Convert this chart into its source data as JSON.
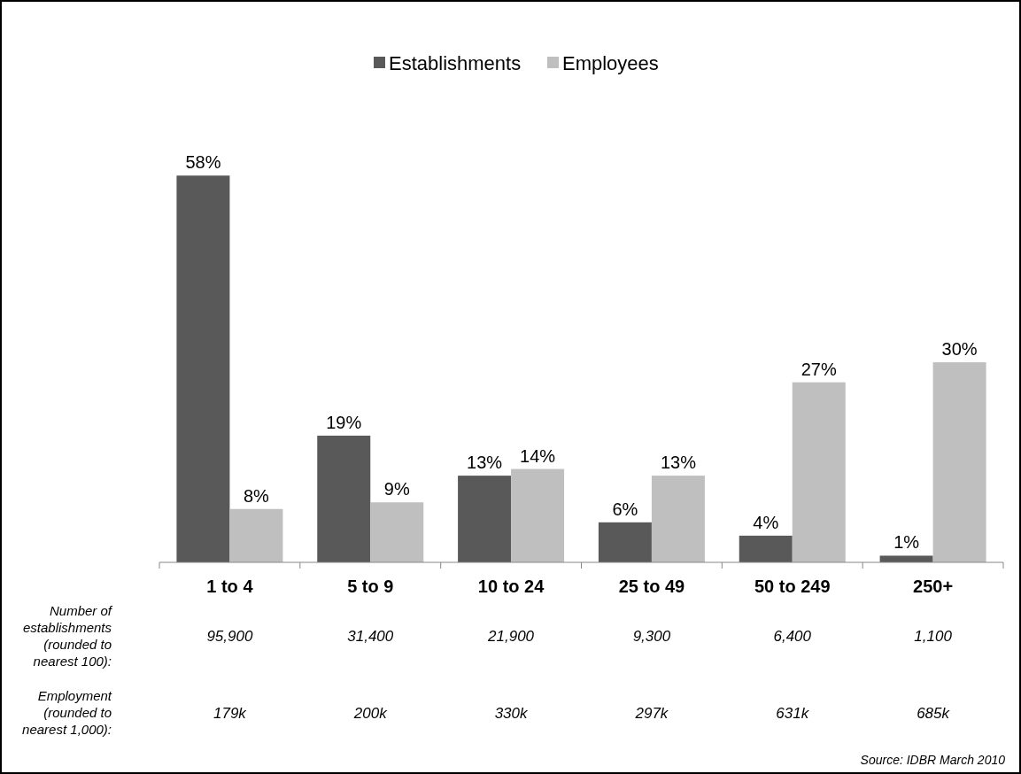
{
  "chart_data": {
    "type": "bar",
    "categories": [
      "1 to 4",
      "5 to 9",
      "10 to 24",
      "25 to 49",
      "50 to 249",
      "250+"
    ],
    "series": [
      {
        "name": "Establishments",
        "color": "#595959",
        "values": [
          58,
          19,
          13,
          6,
          4,
          1
        ],
        "value_labels": [
          "58%",
          "19%",
          "13%",
          "6%",
          "4%",
          "1%"
        ]
      },
      {
        "name": "Employees",
        "color": "#bfbfbf",
        "values": [
          8,
          9,
          14,
          13,
          27,
          30
        ],
        "value_labels": [
          "8%",
          "9%",
          "14%",
          "13%",
          "27%",
          "30%"
        ]
      }
    ],
    "legend": "top",
    "annotations": [
      "Number of establishments (rounded to nearest 100):",
      "95,900",
      "31,400",
      "21,900",
      "9,300",
      "6,400",
      "1,100",
      "Employment (rounded to nearest 1,000):",
      "179k",
      "200k",
      "330k",
      "297k",
      "631k",
      "685k",
      "Source: IDBR March 2010"
    ]
  }
}
